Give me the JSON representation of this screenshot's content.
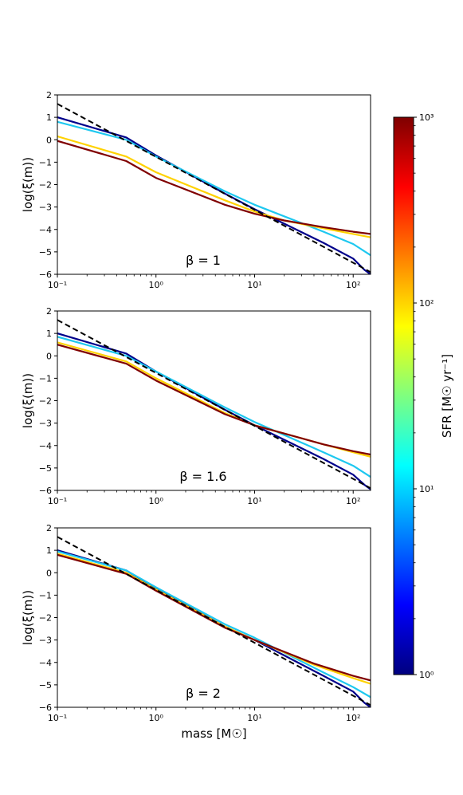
{
  "chart_data": [
    {
      "type": "line",
      "panel": "top",
      "annotation": "β = 1",
      "ylabel": "log(ξ(m))",
      "xlabel": "",
      "xscale": "log",
      "xlim": [
        0.1,
        150
      ],
      "ylim": [
        -6,
        2
      ],
      "x_ticks": [
        "10⁻¹",
        "10⁰",
        "10¹",
        "10²"
      ],
      "y_ticks": [
        "2",
        "1",
        "0",
        "−1",
        "−2",
        "−3",
        "−4",
        "−5",
        "−6"
      ],
      "series": [
        {
          "color": "#00008b",
          "x": [
            0.1,
            0.5,
            1,
            5,
            10,
            50,
            100,
            130,
            150
          ],
          "y": [
            1.0,
            0.1,
            -0.7,
            -2.4,
            -3.1,
            -4.6,
            -5.3,
            -5.8,
            -6.0
          ]
        },
        {
          "color": "#1ec8f0",
          "x": [
            0.1,
            0.5,
            1,
            5,
            10,
            50,
            100,
            150
          ],
          "y": [
            0.8,
            0.0,
            -0.75,
            -2.3,
            -2.9,
            -4.1,
            -4.65,
            -5.15
          ]
        },
        {
          "color": "#ffd200",
          "x": [
            0.1,
            0.5,
            1,
            5,
            10,
            20,
            50,
            100,
            150
          ],
          "y": [
            0.15,
            -0.75,
            -1.45,
            -2.7,
            -3.2,
            -3.6,
            -3.95,
            -4.2,
            -4.35
          ]
        },
        {
          "color": "#800000",
          "x": [
            0.1,
            0.5,
            1,
            5,
            10,
            20,
            50,
            100,
            150
          ],
          "y": [
            -0.05,
            -0.95,
            -1.7,
            -2.9,
            -3.3,
            -3.6,
            -3.9,
            -4.1,
            -4.2
          ]
        },
        {
          "dashed": true,
          "color": "#000000",
          "x": [
            0.1,
            150
          ],
          "y": [
            1.6,
            -5.9
          ]
        }
      ]
    },
    {
      "type": "line",
      "panel": "middle",
      "annotation": "β = 1.6",
      "ylabel": "log(ξ(m))",
      "xlabel": "",
      "xscale": "log",
      "xlim": [
        0.1,
        150
      ],
      "ylim": [
        -6,
        2
      ],
      "x_ticks": [
        "10⁻¹",
        "10⁰",
        "10¹",
        "10²"
      ],
      "y_ticks": [
        "2",
        "1",
        "0",
        "−1",
        "−2",
        "−3",
        "−4",
        "−5",
        "−6"
      ],
      "series": [
        {
          "color": "#00008b",
          "x": [
            0.1,
            0.5,
            1,
            5,
            10,
            50,
            100,
            130,
            150
          ],
          "y": [
            1.0,
            0.1,
            -0.7,
            -2.4,
            -3.1,
            -4.6,
            -5.3,
            -5.75,
            -5.95
          ]
        },
        {
          "color": "#1ec8f0",
          "x": [
            0.1,
            0.5,
            1,
            5,
            10,
            50,
            100,
            150
          ],
          "y": [
            0.85,
            0.0,
            -0.7,
            -2.3,
            -2.95,
            -4.3,
            -4.9,
            -5.4
          ]
        },
        {
          "color": "#ffd200",
          "x": [
            0.1,
            0.5,
            1,
            5,
            10,
            50,
            100,
            150
          ],
          "y": [
            0.6,
            -0.25,
            -1.0,
            -2.55,
            -3.1,
            -3.95,
            -4.3,
            -4.5
          ]
        },
        {
          "color": "#800000",
          "x": [
            0.1,
            0.5,
            1,
            5,
            10,
            50,
            100,
            150
          ],
          "y": [
            0.5,
            -0.35,
            -1.1,
            -2.6,
            -3.1,
            -3.95,
            -4.25,
            -4.4
          ]
        },
        {
          "dashed": true,
          "color": "#000000",
          "x": [
            0.1,
            150
          ],
          "y": [
            1.6,
            -5.9
          ]
        }
      ]
    },
    {
      "type": "line",
      "panel": "bottom",
      "annotation": "β = 2",
      "ylabel": "log(ξ(m))",
      "xlabel": "mass [M☉]",
      "xscale": "log",
      "xlim": [
        0.1,
        150
      ],
      "ylim": [
        -6,
        2
      ],
      "x_ticks": [
        "10⁻¹",
        "10⁰",
        "10¹",
        "10²"
      ],
      "y_ticks": [
        "2",
        "1",
        "0",
        "−1",
        "−2",
        "−3",
        "−4",
        "−5",
        "−6"
      ],
      "series": [
        {
          "color": "#00008b",
          "x": [
            0.1,
            0.5,
            1,
            5,
            10,
            50,
            100,
            130,
            150
          ],
          "y": [
            1.0,
            0.1,
            -0.7,
            -2.4,
            -3.0,
            -4.6,
            -5.3,
            -5.8,
            -6.0
          ]
        },
        {
          "color": "#1ec8f0",
          "x": [
            0.1,
            0.5,
            1,
            5,
            10,
            50,
            100,
            150
          ],
          "y": [
            0.95,
            0.1,
            -0.65,
            -2.3,
            -2.9,
            -4.45,
            -5.1,
            -5.55
          ]
        },
        {
          "color": "#ffd200",
          "x": [
            0.1,
            0.5,
            1,
            5,
            10,
            40,
            100,
            150
          ],
          "y": [
            0.85,
            0.0,
            -0.75,
            -2.4,
            -3.0,
            -4.1,
            -4.7,
            -4.95
          ]
        },
        {
          "color": "#800000",
          "x": [
            0.1,
            0.5,
            1,
            5,
            10,
            40,
            100,
            150
          ],
          "y": [
            0.8,
            -0.05,
            -0.8,
            -2.45,
            -3.0,
            -4.05,
            -4.6,
            -4.8
          ]
        },
        {
          "dashed": true,
          "color": "#000000",
          "x": [
            0.1,
            150
          ],
          "y": [
            1.6,
            -5.9
          ]
        }
      ]
    }
  ],
  "colorbar": {
    "label": "SFR [M☉ yr⁻¹]",
    "scale": "log",
    "range": [
      1,
      1000
    ],
    "ticks": [
      "10⁰",
      "10¹",
      "10²",
      "10³"
    ],
    "colormap_stops": [
      "#00007f",
      "#0000ff",
      "#007fff",
      "#00ffff",
      "#7fff7f",
      "#ffff00",
      "#ff7f00",
      "#ff0000",
      "#7f0000"
    ]
  }
}
